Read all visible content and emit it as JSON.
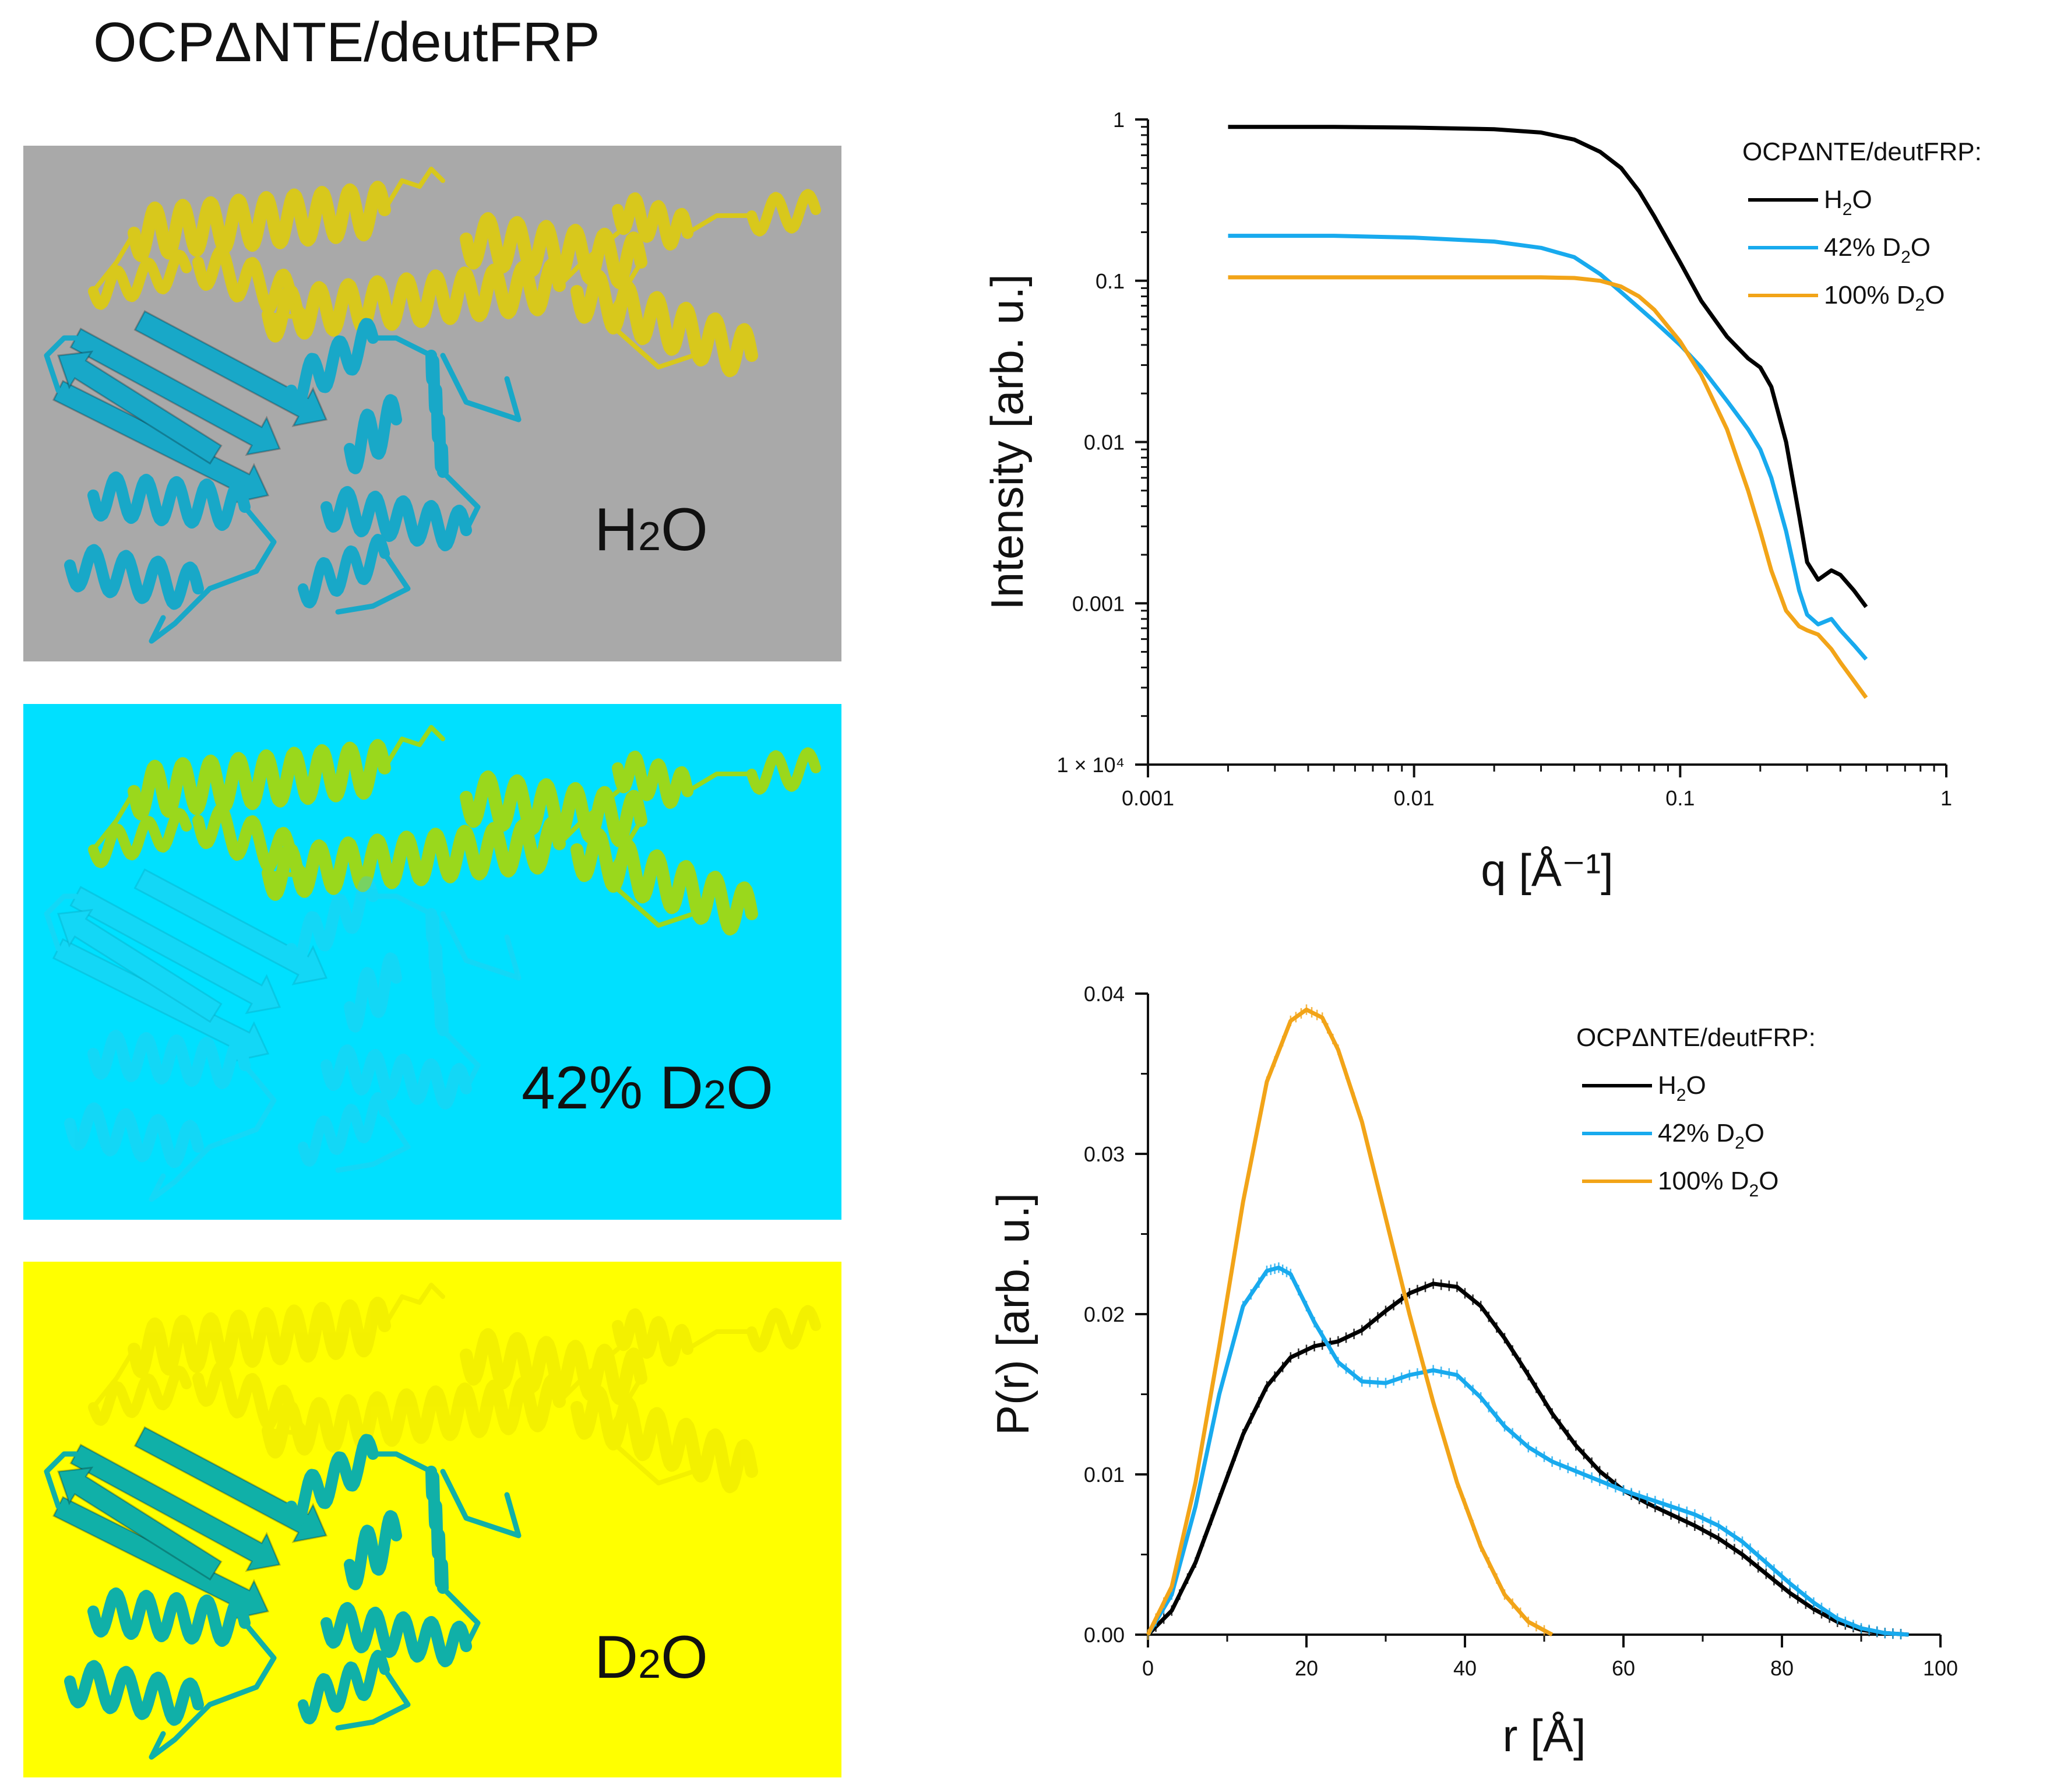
{
  "figure": {
    "title": "OCPΔNTE/deutFRP"
  },
  "panels": [
    {
      "label_main": "H",
      "label_sub": "2",
      "label_tail": "O",
      "background": "#a9a9a9",
      "top_color": "#d8c81c",
      "bottom_color": "#18a8c8",
      "top_opacity": 1.0,
      "bottom_opacity": 1.0
    },
    {
      "label_main": "42% D",
      "label_sub": "2",
      "label_tail": "O",
      "background": "#00e0ff",
      "top_color": "#9ad81c",
      "bottom_color": "#38c8e8",
      "top_opacity": 1.0,
      "bottom_opacity": 0.35
    },
    {
      "label_main": "D",
      "label_sub": "2",
      "label_tail": "O",
      "background": "#ffff00",
      "top_color": "#e6e000",
      "bottom_color": "#10b0a8",
      "top_opacity": 0.45,
      "bottom_opacity": 1.0
    }
  ],
  "colors": {
    "h2o": "#000000",
    "d42": "#18aaee",
    "d100": "#f2a418"
  },
  "chart_data": [
    {
      "type": "line",
      "xlabel": "q [Å⁻¹]",
      "ylabel": "Intensity [arb. u.]",
      "xscale": "log",
      "yscale": "log",
      "xlim": [
        0.001,
        1
      ],
      "ylim": [
        0.0001,
        1
      ],
      "xticks": [
        "0.001",
        "0.01",
        "0.1",
        "1"
      ],
      "yticks": [
        "1 × 10⁴",
        "0.001",
        "0.01",
        "0.1",
        "1"
      ],
      "legend": {
        "title": "OCPΔNTE/deutFRP:",
        "position": "top-right",
        "entries": [
          {
            "main": "H",
            "sub": "2",
            "tail": "O"
          },
          {
            "main": "42% D",
            "sub": "2",
            "tail": "O"
          },
          {
            "main": "100% D",
            "sub": "2",
            "tail": "O"
          }
        ]
      },
      "series": [
        {
          "key": "h2o",
          "x": [
            0.002,
            0.005,
            0.01,
            0.02,
            0.03,
            0.04,
            0.05,
            0.06,
            0.07,
            0.08,
            0.1,
            0.12,
            0.15,
            0.18,
            0.2,
            0.22,
            0.25,
            0.28,
            0.3,
            0.33,
            0.37,
            0.4,
            0.45,
            0.5
          ],
          "y": [
            0.9,
            0.9,
            0.89,
            0.87,
            0.83,
            0.75,
            0.63,
            0.5,
            0.36,
            0.25,
            0.13,
            0.075,
            0.045,
            0.033,
            0.029,
            0.022,
            0.01,
            0.0035,
            0.0018,
            0.0014,
            0.0016,
            0.0015,
            0.0012,
            0.00095
          ]
        },
        {
          "key": "d42",
          "x": [
            0.002,
            0.005,
            0.01,
            0.02,
            0.03,
            0.04,
            0.05,
            0.06,
            0.07,
            0.08,
            0.1,
            0.12,
            0.15,
            0.18,
            0.2,
            0.22,
            0.25,
            0.28,
            0.3,
            0.33,
            0.37,
            0.4,
            0.45,
            0.5
          ],
          "y": [
            0.19,
            0.19,
            0.185,
            0.175,
            0.16,
            0.14,
            0.11,
            0.085,
            0.068,
            0.056,
            0.04,
            0.029,
            0.018,
            0.012,
            0.009,
            0.006,
            0.0028,
            0.0012,
            0.00085,
            0.00074,
            0.0008,
            0.00068,
            0.00055,
            0.00045
          ]
        },
        {
          "key": "d100",
          "x": [
            0.002,
            0.005,
            0.01,
            0.02,
            0.03,
            0.04,
            0.05,
            0.06,
            0.07,
            0.08,
            0.1,
            0.12,
            0.15,
            0.18,
            0.2,
            0.22,
            0.25,
            0.28,
            0.3,
            0.33,
            0.37,
            0.4,
            0.45,
            0.5
          ],
          "y": [
            0.105,
            0.105,
            0.105,
            0.105,
            0.105,
            0.104,
            0.1,
            0.092,
            0.08,
            0.066,
            0.042,
            0.026,
            0.012,
            0.005,
            0.0028,
            0.0016,
            0.0009,
            0.00072,
            0.00068,
            0.00064,
            0.00052,
            0.00043,
            0.00033,
            0.00026
          ]
        }
      ]
    },
    {
      "type": "line",
      "xlabel": "r [Å]",
      "ylabel": "P(r) [arb. u.]",
      "xlim": [
        0,
        100
      ],
      "ylim": [
        0,
        0.04
      ],
      "xticks": [
        "0",
        "20",
        "40",
        "60",
        "80",
        "100"
      ],
      "yticks": [
        "0.00",
        "0.01",
        "0.02",
        "0.03",
        "0.04"
      ],
      "legend": {
        "title": "OCPΔNTE/deutFRP:",
        "position": "top-right",
        "entries": [
          {
            "main": "H",
            "sub": "2",
            "tail": "O"
          },
          {
            "main": "42% D",
            "sub": "2",
            "tail": "O"
          },
          {
            "main": "100% D",
            "sub": "2",
            "tail": "O"
          }
        ]
      },
      "series": [
        {
          "key": "h2o",
          "x": [
            0,
            3,
            6,
            9,
            12,
            15,
            18,
            21,
            24,
            27,
            30,
            33,
            36,
            39,
            42,
            45,
            48,
            51,
            54,
            57,
            60,
            63,
            66,
            69,
            72,
            75,
            78,
            81,
            84,
            87,
            90,
            93,
            96
          ],
          "y": [
            0,
            0.0015,
            0.0045,
            0.0085,
            0.0125,
            0.0155,
            0.0173,
            0.018,
            0.0183,
            0.019,
            0.0202,
            0.0213,
            0.0219,
            0.0217,
            0.0205,
            0.0185,
            0.0162,
            0.0138,
            0.0118,
            0.0102,
            0.009,
            0.0082,
            0.0075,
            0.0068,
            0.006,
            0.005,
            0.0038,
            0.0026,
            0.0016,
            0.0008,
            0.0003,
            0.0001,
            0
          ]
        },
        {
          "key": "d42",
          "x": [
            0,
            3,
            6,
            9,
            12,
            15,
            16.5,
            18,
            21,
            24,
            27,
            30,
            33,
            36,
            39,
            42,
            45,
            48,
            51,
            54,
            57,
            60,
            63,
            66,
            69,
            72,
            75,
            78,
            81,
            84,
            87,
            90,
            93,
            96
          ],
          "y": [
            0,
            0.0025,
            0.008,
            0.015,
            0.0205,
            0.0227,
            0.0229,
            0.0225,
            0.0195,
            0.017,
            0.0158,
            0.0157,
            0.0162,
            0.0165,
            0.0162,
            0.0148,
            0.013,
            0.0117,
            0.0108,
            0.0102,
            0.0096,
            0.009,
            0.0085,
            0.008,
            0.0075,
            0.0068,
            0.0058,
            0.0045,
            0.0032,
            0.002,
            0.001,
            0.0004,
            0.0001,
            0
          ]
        },
        {
          "key": "d100",
          "x": [
            0,
            3,
            6,
            9,
            12,
            15,
            18,
            20,
            22,
            24,
            27,
            30,
            33,
            36,
            39,
            42,
            45,
            48,
            51
          ],
          "y": [
            0,
            0.003,
            0.0095,
            0.018,
            0.027,
            0.0345,
            0.0383,
            0.039,
            0.0385,
            0.0365,
            0.032,
            0.026,
            0.02,
            0.0145,
            0.0095,
            0.0055,
            0.0025,
            0.0008,
            0
          ]
        }
      ]
    }
  ]
}
